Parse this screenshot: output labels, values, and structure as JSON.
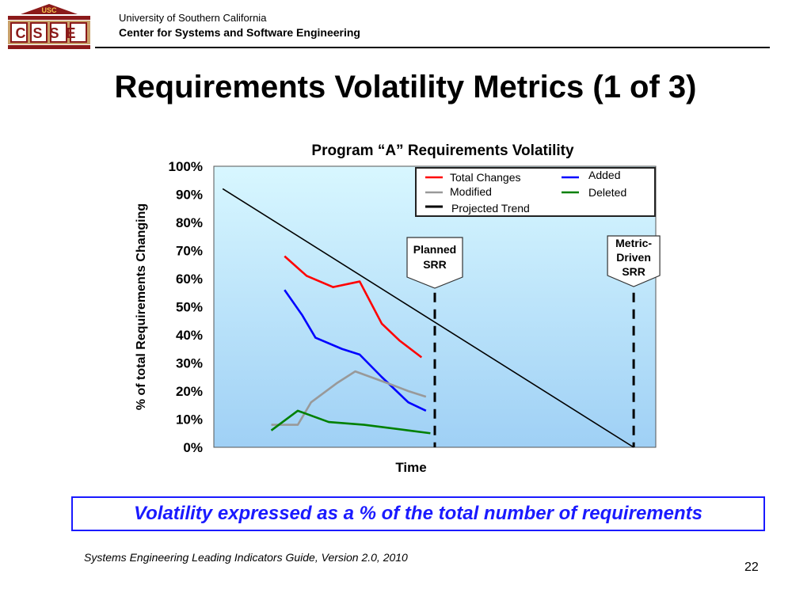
{
  "header": {
    "logo_text": "CSSE",
    "logo_top": "USC",
    "university": "University of Southern California",
    "center": "Center for Systems and Software Engineering"
  },
  "slide": {
    "title": "Requirements Volatility Metrics (1 of 3)",
    "callout": "Volatility expressed as a % of the total number of requirements",
    "source": "Systems Engineering Leading Indicators Guide, Version 2.0, 2010",
    "page_number": "22"
  },
  "colors": {
    "plot_bg_top": "#d8f7ff",
    "plot_bg_bottom": "#9fd0f5",
    "total_changes": "#ff0000",
    "added": "#0000ff",
    "modified": "#999999",
    "deleted": "#008000",
    "trend": "#000000",
    "callout": "#1a1aff"
  },
  "chart_data": {
    "type": "line",
    "title": "Program “A” Requirements Volatility",
    "xlabel": "Time",
    "ylabel": "% of total Requirements Changing",
    "ylim": [
      0,
      100
    ],
    "yticks": [
      "0%",
      "10%",
      "20%",
      "30%",
      "40%",
      "50%",
      "60%",
      "70%",
      "80%",
      "90%",
      "100%"
    ],
    "xlim": [
      0,
      10
    ],
    "legend_position": "top-right",
    "series": [
      {
        "name": "Total Changes",
        "color": "#ff0000",
        "points": [
          [
            1.6,
            68
          ],
          [
            2.1,
            61
          ],
          [
            2.7,
            57
          ],
          [
            3.3,
            59
          ],
          [
            3.8,
            44
          ],
          [
            4.2,
            38
          ],
          [
            4.7,
            32
          ]
        ]
      },
      {
        "name": "Added",
        "color": "#0000ff",
        "points": [
          [
            1.6,
            56
          ],
          [
            2.0,
            47
          ],
          [
            2.3,
            39
          ],
          [
            2.9,
            35
          ],
          [
            3.3,
            33
          ],
          [
            3.8,
            25
          ],
          [
            4.4,
            16
          ],
          [
            4.8,
            13
          ]
        ]
      },
      {
        "name": "Modified",
        "color": "#999999",
        "points": [
          [
            1.3,
            8
          ],
          [
            1.9,
            8
          ],
          [
            2.2,
            16
          ],
          [
            2.8,
            23
          ],
          [
            3.2,
            27
          ],
          [
            3.9,
            23
          ],
          [
            4.4,
            20
          ],
          [
            4.8,
            18
          ]
        ]
      },
      {
        "name": "Deleted",
        "color": "#008000",
        "points": [
          [
            1.3,
            6
          ],
          [
            1.9,
            13
          ],
          [
            2.6,
            9
          ],
          [
            3.4,
            8
          ],
          [
            4.4,
            6
          ],
          [
            4.9,
            5
          ]
        ]
      },
      {
        "name": "Projected Trend",
        "color": "#000000",
        "points": [
          [
            0.2,
            92
          ],
          [
            9.5,
            0
          ]
        ]
      }
    ],
    "annotations": [
      {
        "lines": [
          "Planned",
          "SRR"
        ],
        "x": 5.0
      },
      {
        "lines": [
          "Metric-",
          "Driven",
          "SRR"
        ],
        "x": 9.5
      }
    ]
  }
}
